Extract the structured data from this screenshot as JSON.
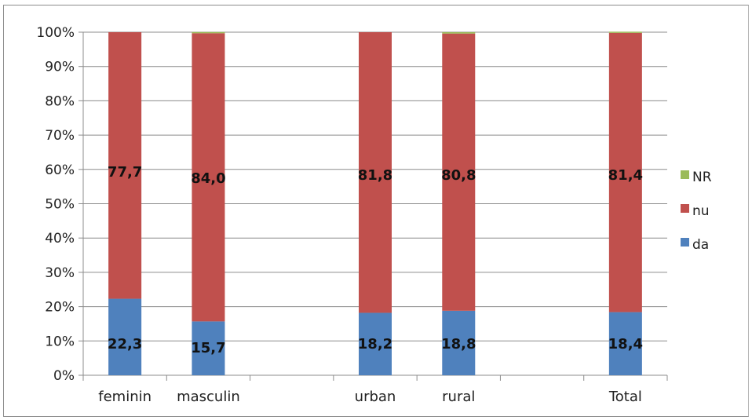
{
  "chart_data": {
    "type": "bar",
    "stacked": "percent",
    "categories": [
      "feminin",
      "masculin",
      "",
      "urban",
      "rural",
      "",
      "Total"
    ],
    "series": [
      {
        "name": "da",
        "values": [
          22.3,
          15.7,
          null,
          18.2,
          18.8,
          null,
          18.4
        ],
        "color": "#4f81bd"
      },
      {
        "name": "nu",
        "values": [
          77.7,
          84.0,
          null,
          81.8,
          80.8,
          null,
          81.4
        ],
        "color": "#c0504d"
      },
      {
        "name": "NR",
        "values": [
          0.0,
          0.3,
          null,
          0.0,
          0.4,
          null,
          0.2
        ],
        "color": "#9bbb59"
      }
    ],
    "data_labels": [
      {
        "category": "feminin",
        "da": "22,3",
        "nu": "77,7"
      },
      {
        "category": "masculin",
        "da": "15,7",
        "nu": "84,0"
      },
      {
        "category": "urban",
        "da": "18,2",
        "nu": "81,8"
      },
      {
        "category": "rural",
        "da": "18,8",
        "nu": "80,8"
      },
      {
        "category": "Total",
        "da": "18,4",
        "nu": "81,4"
      }
    ],
    "y_ticks": [
      "0%",
      "10%",
      "20%",
      "30%",
      "40%",
      "50%",
      "60%",
      "70%",
      "80%",
      "90%",
      "100%"
    ],
    "ylim": [
      0,
      100
    ],
    "grid": true,
    "legend": {
      "position": "right",
      "order": [
        "NR",
        "nu",
        "da"
      ]
    },
    "title": "",
    "xlabel": "",
    "ylabel": ""
  }
}
